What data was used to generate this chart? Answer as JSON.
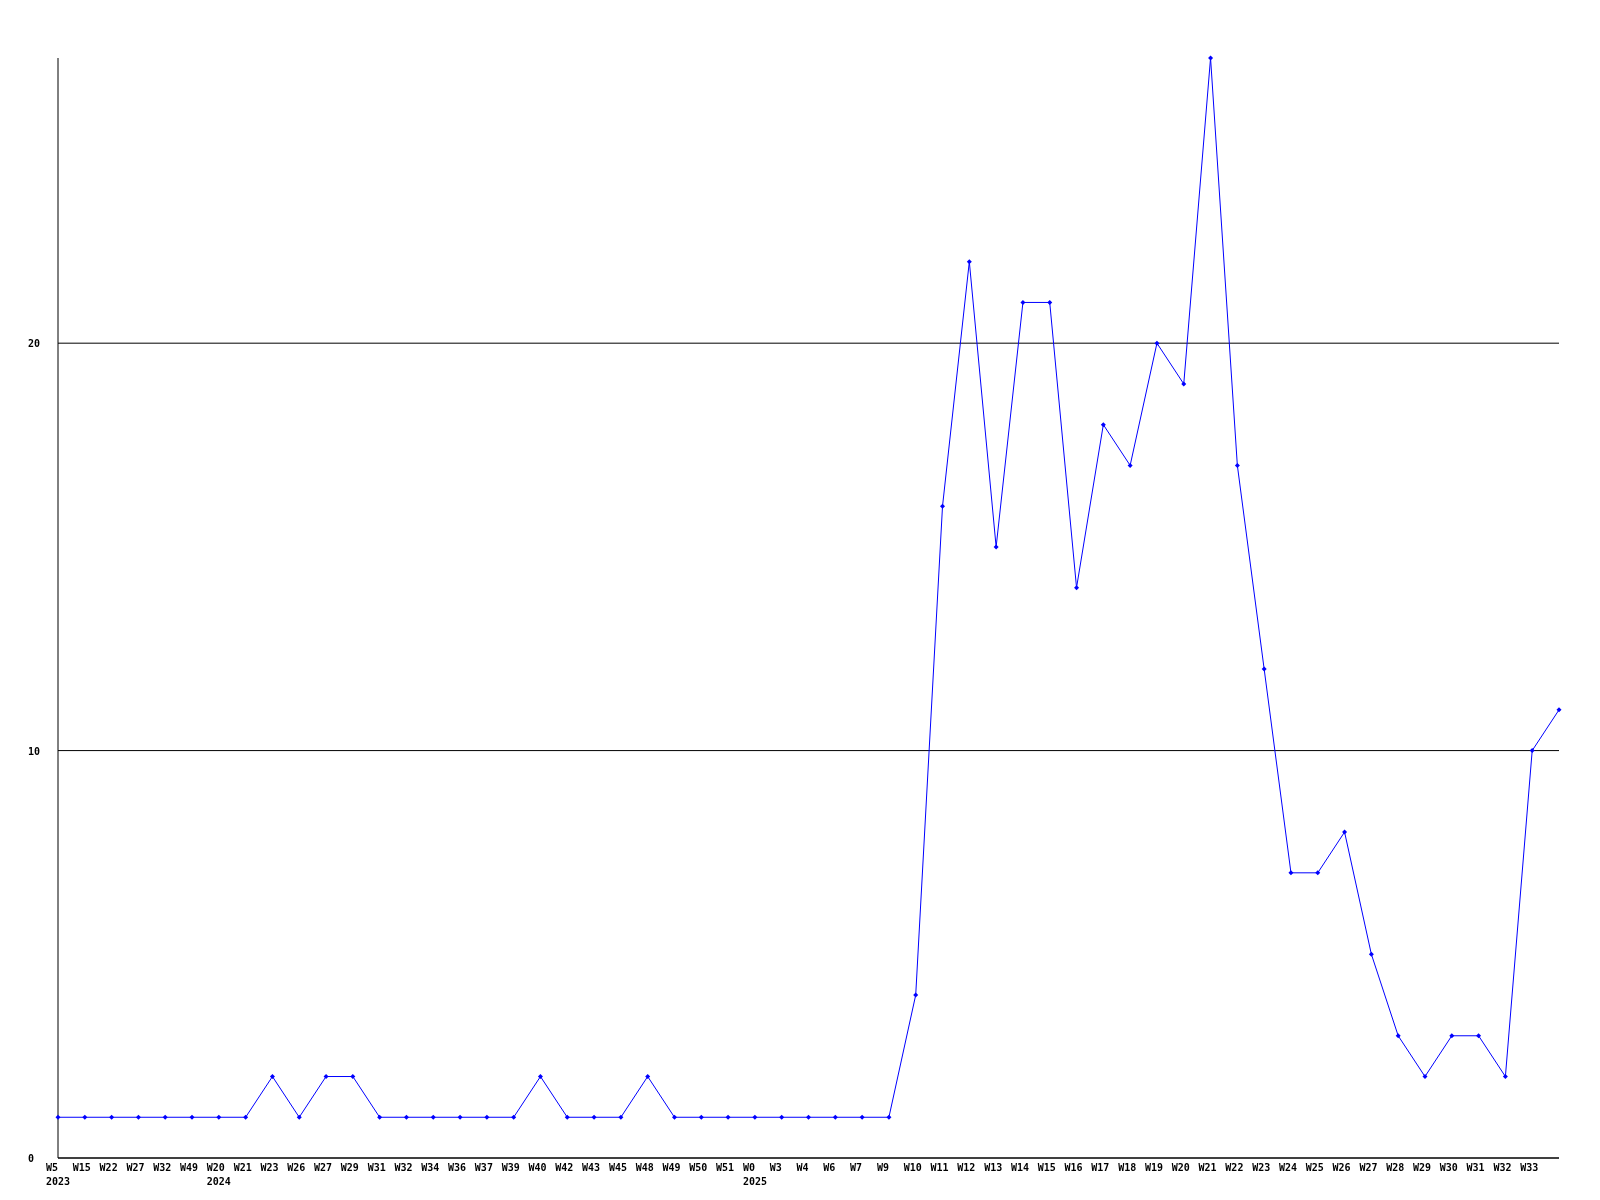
{
  "chart_data": {
    "type": "line",
    "categories": [
      "W5\n2023",
      "W15",
      "W22",
      "W27",
      "W32",
      "W49",
      "W20\n2024",
      "W21",
      "W23",
      "W26",
      "W27",
      "W29",
      "W31",
      "W32",
      "W34",
      "W36",
      "W37",
      "W39",
      "W40",
      "W42",
      "W43",
      "W45",
      "W48",
      "W49",
      "W50",
      "W51",
      "W0\n2025",
      "W3",
      "W4",
      "W6",
      "W7",
      "W9",
      "W10",
      "W11",
      "W12",
      "W13",
      "W14",
      "W15",
      "W16",
      "W17",
      "W18",
      "W19",
      "W20",
      "W21",
      "W22",
      "W23",
      "W24",
      "W25",
      "W26",
      "W27",
      "W28",
      "W29",
      "W30",
      "W31",
      "W32",
      "W33",
      null
    ],
    "series": [
      {
        "color": "#0000ff",
        "values": [
          1,
          1,
          1,
          1,
          1,
          1,
          1,
          1,
          2,
          1,
          2,
          2,
          1,
          1,
          1,
          1,
          1,
          1,
          2,
          1,
          1,
          1,
          2,
          1,
          1,
          1,
          1,
          1,
          1,
          1,
          1,
          1,
          4,
          16,
          22,
          15,
          21,
          21,
          14,
          18,
          17,
          20,
          19,
          27,
          17,
          12,
          7,
          7,
          8,
          5,
          3,
          2,
          3,
          3,
          2,
          10,
          11
        ]
      }
    ],
    "ylim": [
      0,
      27
    ],
    "yticks": [
      0,
      10,
      20
    ],
    "grid": "y",
    "marker": "diamond",
    "line_style": "solid"
  }
}
